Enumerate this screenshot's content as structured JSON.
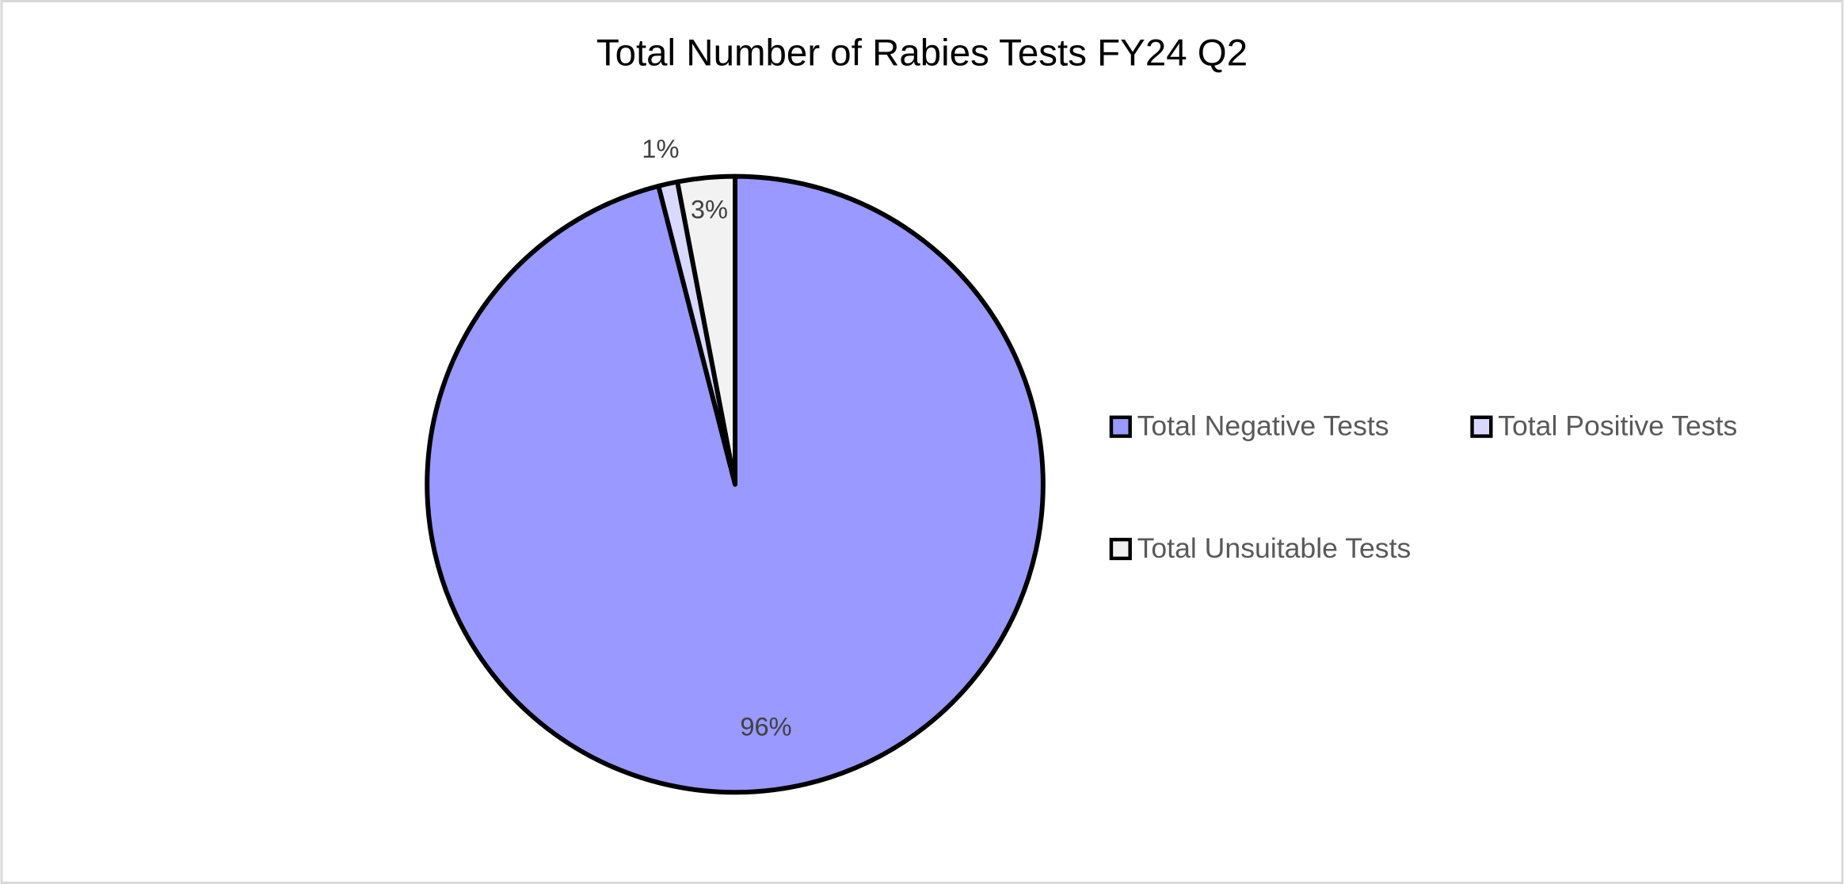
{
  "chart_data": {
    "type": "pie",
    "title": "Total Number of Rabies Tests FY24 Q2",
    "categories": [
      "Total Negative Tests",
      "Total Positive Tests",
      "Total Unsuitable Tests"
    ],
    "values": [
      96,
      1,
      3
    ],
    "value_labels": [
      "96%",
      "1%",
      "3%"
    ],
    "colors": [
      "#9999ff",
      "#d9d9ff",
      "#f2f2f2"
    ],
    "legend": "right"
  }
}
